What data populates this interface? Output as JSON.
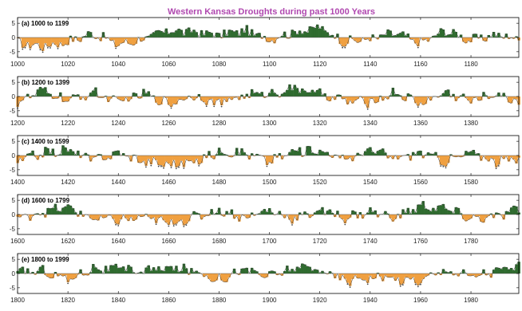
{
  "title": "Western Kansas Droughts during past 1000 Years",
  "colors": {
    "title": "#b048b0",
    "positive": "#2f6b2f",
    "negative": "#f0a040",
    "line": "#333333",
    "axis": "#000000",
    "dot": "#444444"
  },
  "chart_data": [
    {
      "type": "area",
      "panel_label": "(a) 1000 to 1199",
      "xlim": [
        1000,
        1199
      ],
      "ylim": [
        -7,
        7
      ],
      "y_ticks": [
        5,
        0,
        -5
      ],
      "x_ticks": [
        1000,
        1020,
        1040,
        1060,
        1080,
        1100,
        1120,
        1140,
        1160,
        1180
      ],
      "anchor_years": [
        1000,
        1010,
        1020,
        1030,
        1040,
        1050,
        1060,
        1070,
        1080,
        1090,
        1100,
        1110,
        1120,
        1130,
        1140,
        1150,
        1160,
        1170,
        1180,
        1190,
        1199
      ],
      "anchor_values": [
        -2,
        -3,
        -1.5,
        1.5,
        -2.5,
        -0.5,
        2.5,
        2,
        1,
        2.5,
        -0.5,
        2,
        3.5,
        -1.5,
        -0.5,
        1.5,
        -2,
        2.5,
        -1,
        1,
        -0.5
      ]
    },
    {
      "type": "area",
      "panel_label": "(b) 1200 to 1399",
      "xlim": [
        1200,
        1399
      ],
      "ylim": [
        -7,
        7
      ],
      "y_ticks": [
        5,
        0,
        -5
      ],
      "x_ticks": [
        1200,
        1220,
        1240,
        1260,
        1280,
        1300,
        1320,
        1340,
        1360,
        1380
      ],
      "anchor_years": [
        1200,
        1210,
        1220,
        1230,
        1240,
        1250,
        1260,
        1270,
        1280,
        1290,
        1300,
        1310,
        1320,
        1330,
        1340,
        1350,
        1360,
        1370,
        1380,
        1390,
        1399
      ],
      "anchor_values": [
        -2,
        2,
        -1.5,
        1.5,
        -2,
        1,
        -2.5,
        0.5,
        -2.5,
        0.5,
        1,
        3,
        1,
        -1.5,
        -2,
        1.5,
        -2.5,
        1.5,
        -1.5,
        1,
        -2
      ]
    },
    {
      "type": "area",
      "panel_label": "(c) 1400 to 1599",
      "xlim": [
        1400,
        1599
      ],
      "ylim": [
        -7,
        7
      ],
      "y_ticks": [
        5,
        0,
        -5
      ],
      "x_ticks": [
        1400,
        1420,
        1440,
        1460,
        1480,
        1500,
        1520,
        1540,
        1560,
        1580
      ],
      "anchor_years": [
        1400,
        1410,
        1420,
        1430,
        1440,
        1450,
        1460,
        1470,
        1480,
        1490,
        1500,
        1510,
        1520,
        1530,
        1540,
        1550,
        1560,
        1570,
        1580,
        1590,
        1599
      ],
      "anchor_values": [
        -2,
        1,
        2,
        -1.5,
        1,
        -2,
        -3,
        -2.5,
        1.5,
        1,
        -2,
        1.5,
        2,
        -1.5,
        2,
        -1,
        1,
        -2,
        1,
        -2,
        -1.5
      ]
    },
    {
      "type": "area",
      "panel_label": "(d) 1600 to 1799",
      "xlim": [
        1600,
        1799
      ],
      "ylim": [
        -7,
        7
      ],
      "y_ticks": [
        5,
        0,
        -5
      ],
      "x_ticks": [
        1600,
        1620,
        1640,
        1660,
        1680,
        1700,
        1720,
        1740,
        1760,
        1780
      ],
      "anchor_years": [
        1600,
        1610,
        1620,
        1630,
        1640,
        1650,
        1660,
        1670,
        1680,
        1690,
        1700,
        1710,
        1720,
        1730,
        1740,
        1750,
        1760,
        1770,
        1780,
        1790,
        1799
      ],
      "anchor_values": [
        -1.5,
        1,
        2.5,
        -1.5,
        -2,
        -1,
        -3,
        -1,
        1.5,
        -1,
        1.5,
        -1.5,
        1.5,
        -1,
        1,
        -1,
        3,
        2,
        -1.5,
        -1,
        2
      ]
    },
    {
      "type": "area",
      "panel_label": "(e) 1800 to 1999",
      "xlim": [
        1800,
        1999
      ],
      "ylim": [
        -7,
        7
      ],
      "y_ticks": [
        5,
        0,
        -5
      ],
      "x_ticks": [
        1800,
        1820,
        1840,
        1860,
        1880,
        1900,
        1920,
        1940,
        1960,
        1980
      ],
      "anchor_years": [
        1800,
        1810,
        1820,
        1830,
        1840,
        1850,
        1860,
        1870,
        1880,
        1890,
        1900,
        1910,
        1920,
        1930,
        1940,
        1950,
        1960,
        1970,
        1980,
        1990,
        1999
      ],
      "anchor_values": [
        0.5,
        1,
        -2,
        2,
        1.5,
        1,
        2,
        1,
        -2,
        1.5,
        -1,
        2,
        1.5,
        -2.5,
        -1,
        -2,
        -2.5,
        1.5,
        -1,
        1,
        2.5
      ]
    }
  ]
}
